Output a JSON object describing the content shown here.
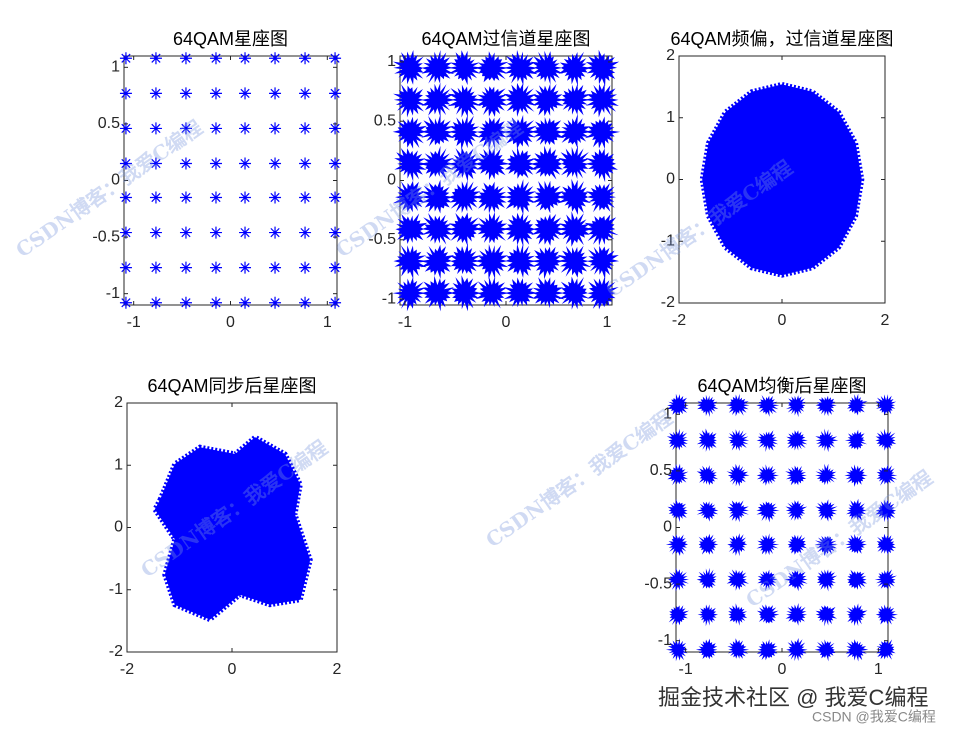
{
  "chart_data": [
    {
      "type": "scatter",
      "title": "64QAM星座图",
      "marker": "asterisk",
      "color": "#0000ff",
      "x": [
        -1.08,
        -0.77,
        -0.46,
        -0.15,
        0.15,
        0.46,
        0.77,
        1.08,
        -1.08,
        -0.77,
        -0.46,
        -0.15,
        0.15,
        0.46,
        0.77,
        1.08,
        -1.08,
        -0.77,
        -0.46,
        -0.15,
        0.15,
        0.46,
        0.77,
        1.08,
        -1.08,
        -0.77,
        -0.46,
        -0.15,
        0.15,
        0.46,
        0.77,
        1.08,
        -1.08,
        -0.77,
        -0.46,
        -0.15,
        0.15,
        0.46,
        0.77,
        1.08,
        -1.08,
        -0.77,
        -0.46,
        -0.15,
        0.15,
        0.46,
        0.77,
        1.08,
        -1.08,
        -0.77,
        -0.46,
        -0.15,
        0.15,
        0.46,
        0.77,
        1.08,
        -1.08,
        -0.77,
        -0.46,
        -0.15,
        0.15,
        0.46,
        0.77,
        1.08
      ],
      "y": [
        1.08,
        1.08,
        1.08,
        1.08,
        1.08,
        1.08,
        1.08,
        1.08,
        0.77,
        0.77,
        0.77,
        0.77,
        0.77,
        0.77,
        0.77,
        0.77,
        0.46,
        0.46,
        0.46,
        0.46,
        0.46,
        0.46,
        0.46,
        0.46,
        0.15,
        0.15,
        0.15,
        0.15,
        0.15,
        0.15,
        0.15,
        0.15,
        -0.15,
        -0.15,
        -0.15,
        -0.15,
        -0.15,
        -0.15,
        -0.15,
        -0.15,
        -0.46,
        -0.46,
        -0.46,
        -0.46,
        -0.46,
        -0.46,
        -0.46,
        -0.46,
        -0.77,
        -0.77,
        -0.77,
        -0.77,
        -0.77,
        -0.77,
        -0.77,
        -0.77,
        -1.08,
        -1.08,
        -1.08,
        -1.08,
        -1.08,
        -1.08,
        -1.08,
        -1.08
      ],
      "xlim": [
        -1.1,
        1.1
      ],
      "ylim": [
        -1.1,
        1.1
      ],
      "xticks": [
        -1,
        0,
        1
      ],
      "yticks": [
        -1,
        -0.5,
        0,
        0.5,
        1
      ]
    },
    {
      "type": "scatter",
      "title": "64QAM过信道星座图",
      "marker": "burst",
      "color": "#0000ff",
      "x": [
        -0.95,
        -0.68,
        -0.41,
        -0.14,
        0.14,
        0.41,
        0.68,
        0.95,
        -0.95,
        -0.68,
        -0.41,
        -0.14,
        0.14,
        0.41,
        0.68,
        0.95,
        -0.95,
        -0.68,
        -0.41,
        -0.14,
        0.14,
        0.41,
        0.68,
        0.95,
        -0.95,
        -0.68,
        -0.41,
        -0.14,
        0.14,
        0.41,
        0.68,
        0.95,
        -0.95,
        -0.68,
        -0.41,
        -0.14,
        0.14,
        0.41,
        0.68,
        0.95,
        -0.95,
        -0.68,
        -0.41,
        -0.14,
        0.14,
        0.41,
        0.68,
        0.95,
        -0.95,
        -0.68,
        -0.41,
        -0.14,
        0.14,
        0.41,
        0.68,
        0.95,
        -0.95,
        -0.68,
        -0.41,
        -0.14,
        0.14,
        0.41,
        0.68,
        0.95
      ],
      "y": [
        0.95,
        0.95,
        0.95,
        0.95,
        0.95,
        0.95,
        0.95,
        0.95,
        0.68,
        0.68,
        0.68,
        0.68,
        0.68,
        0.68,
        0.68,
        0.68,
        0.41,
        0.41,
        0.41,
        0.41,
        0.41,
        0.41,
        0.41,
        0.41,
        0.14,
        0.14,
        0.14,
        0.14,
        0.14,
        0.14,
        0.14,
        0.14,
        -0.14,
        -0.14,
        -0.14,
        -0.14,
        -0.14,
        -0.14,
        -0.14,
        -0.14,
        -0.41,
        -0.41,
        -0.41,
        -0.41,
        -0.41,
        -0.41,
        -0.41,
        -0.41,
        -0.68,
        -0.68,
        -0.68,
        -0.68,
        -0.68,
        -0.68,
        -0.68,
        -0.68,
        -0.95,
        -0.95,
        -0.95,
        -0.95,
        -0.95,
        -0.95,
        -0.95,
        -0.95
      ],
      "xlim": [
        -1.05,
        1.05
      ],
      "ylim": [
        -1.05,
        1.05
      ],
      "xticks": [
        -1,
        0,
        1
      ],
      "yticks": [
        -1,
        -0.5,
        0,
        0.5,
        1
      ]
    },
    {
      "type": "region",
      "title": "64QAM频偏，过信道星座图",
      "color": "#0000ff",
      "x": [
        0,
        0.59,
        1.1,
        1.43,
        1.55,
        1.43,
        1.1,
        0.59,
        0,
        -0.59,
        -1.1,
        -1.43,
        -1.55,
        -1.43,
        -1.1,
        -0.59
      ],
      "y": [
        1.54,
        1.42,
        1.09,
        0.59,
        0,
        -0.59,
        -1.1,
        -1.43,
        -1.55,
        -1.43,
        -1.1,
        -0.59,
        0,
        0.59,
        1.09,
        1.42
      ],
      "xlim": [
        -2,
        2
      ],
      "ylim": [
        -2,
        2
      ],
      "xticks": [
        -2,
        0,
        2
      ],
      "yticks": [
        -2,
        -1,
        0,
        1,
        2
      ]
    },
    {
      "type": "region",
      "title": "64QAM同步后星座图",
      "color": "#0000ff",
      "x": [
        -1.37,
        -1.09,
        -0.61,
        0.06,
        0.44,
        1.01,
        1.3,
        1.2,
        1.49,
        1.3,
        0.72,
        0.15,
        -0.42,
        -1.09,
        -1.28,
        -1.09,
        -1.47
      ],
      "y": [
        0.45,
        1.02,
        1.29,
        1.18,
        1.45,
        1.18,
        0.69,
        0.21,
        -0.52,
        -1.16,
        -1.24,
        -1.08,
        -1.48,
        -1.24,
        -0.76,
        -0.19,
        0.29
      ],
      "xlim": [
        -2,
        2
      ],
      "ylim": [
        -2,
        2
      ],
      "xticks": [
        -2,
        0,
        2
      ],
      "yticks": [
        -2,
        -1,
        0,
        1,
        2
      ]
    },
    {
      "type": "scatter",
      "title": "64QAM均衡后星座图",
      "marker": "burst-small",
      "color": "#0000ff",
      "x": [
        -1.08,
        -0.77,
        -0.46,
        -0.15,
        0.15,
        0.46,
        0.77,
        1.08,
        -1.08,
        -0.77,
        -0.46,
        -0.15,
        0.15,
        0.46,
        0.77,
        1.08,
        -1.08,
        -0.77,
        -0.46,
        -0.15,
        0.15,
        0.46,
        0.77,
        1.08,
        -1.08,
        -0.77,
        -0.46,
        -0.15,
        0.15,
        0.46,
        0.77,
        1.08,
        -1.08,
        -0.77,
        -0.46,
        -0.15,
        0.15,
        0.46,
        0.77,
        1.08,
        -1.08,
        -0.77,
        -0.46,
        -0.15,
        0.15,
        0.46,
        0.77,
        1.08,
        -1.08,
        -0.77,
        -0.46,
        -0.15,
        0.15,
        0.46,
        0.77,
        1.08,
        -1.08,
        -0.77,
        -0.46,
        -0.15,
        0.15,
        0.46,
        0.77,
        1.08
      ],
      "y": [
        1.08,
        1.08,
        1.08,
        1.08,
        1.08,
        1.08,
        1.08,
        1.08,
        0.77,
        0.77,
        0.77,
        0.77,
        0.77,
        0.77,
        0.77,
        0.77,
        0.46,
        0.46,
        0.46,
        0.46,
        0.46,
        0.46,
        0.46,
        0.46,
        0.15,
        0.15,
        0.15,
        0.15,
        0.15,
        0.15,
        0.15,
        0.15,
        -0.15,
        -0.15,
        -0.15,
        -0.15,
        -0.15,
        -0.15,
        -0.15,
        -0.15,
        -0.46,
        -0.46,
        -0.46,
        -0.46,
        -0.46,
        -0.46,
        -0.46,
        -0.46,
        -0.77,
        -0.77,
        -0.77,
        -0.77,
        -0.77,
        -0.77,
        -0.77,
        -0.77,
        -1.08,
        -1.08,
        -1.08,
        -1.08,
        -1.08,
        -1.08,
        -1.08,
        -1.08
      ],
      "xlim": [
        -1.1,
        1.1
      ],
      "ylim": [
        -1.1,
        1.1
      ],
      "xticks": [
        -1,
        0,
        1
      ],
      "yticks": [
        -1,
        -0.5,
        0,
        0.5,
        1
      ]
    }
  ],
  "watermarks": [
    "CSDN博客：我爱C编程",
    "CSDN博客：我爱C编程",
    "CSDN博客：我爱C编程",
    "CSDN博客：我爱C编程",
    "CSDN博客：我爱C编程",
    "CSDN博客：我爱C编程"
  ],
  "footer": {
    "site": "掘金技术社区 @ 我爱C编程",
    "credit": "CSDN @我爱C编程"
  }
}
